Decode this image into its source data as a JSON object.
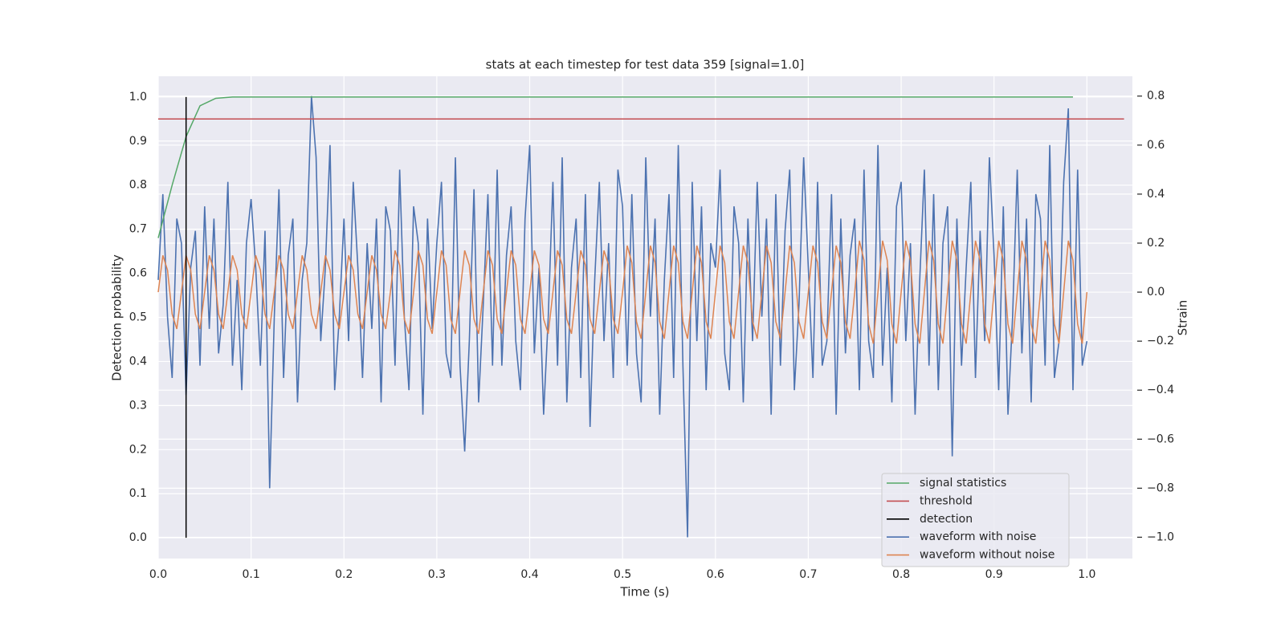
{
  "chart_data": {
    "type": "line",
    "title": "stats at each timestep for test data 359 [signal=1.0]",
    "xlabel": "Time (s)",
    "ylabel": "Detection probability",
    "y2label": "Strain",
    "xlim": [
      0,
      1.049
    ],
    "ylim": [
      -0.047,
      1.047
    ],
    "y2lim": [
      -1.087,
      0.881
    ],
    "xticks": [
      {
        "value": 0,
        "label": "0.0"
      },
      0.1,
      0.2,
      0.3,
      0.4,
      0.5,
      0.6,
      0.7,
      0.8,
      0.9,
      {
        "value": 1,
        "label": "1.0"
      }
    ],
    "yticks": [
      {
        "value": 0,
        "label": "0.0"
      },
      0.1,
      0.2,
      0.3,
      0.4,
      0.5,
      0.6,
      0.7,
      0.8,
      0.9,
      {
        "value": 1,
        "label": "1.0"
      }
    ],
    "y2ticks": [
      {
        "value": -1,
        "label": "−1.0"
      },
      {
        "value": -0.8,
        "label": "−0.8"
      },
      {
        "value": -0.6,
        "label": "−0.6"
      },
      {
        "value": -0.4,
        "label": "−0.4"
      },
      {
        "value": -0.2,
        "label": "−0.2"
      },
      {
        "value": 0,
        "label": "0.0"
      },
      0.2,
      0.4,
      0.6,
      0.8
    ],
    "grid": true,
    "legend": "lower right",
    "x": [
      0,
      0.005,
      0.01,
      0.015,
      0.02,
      0.025,
      0.03,
      0.035,
      0.04,
      0.045,
      0.05,
      0.055,
      0.06,
      0.065,
      0.07,
      0.075,
      0.08,
      0.085,
      0.09,
      0.095,
      0.1,
      0.105,
      0.11,
      0.115,
      0.12,
      0.125,
      0.13,
      0.135,
      0.14,
      0.145,
      0.15,
      0.155,
      0.16,
      0.165,
      0.17,
      0.175,
      0.18,
      0.185,
      0.19,
      0.195,
      0.2,
      0.205,
      0.21,
      0.215,
      0.22,
      0.225,
      0.23,
      0.235,
      0.24,
      0.245,
      0.25,
      0.255,
      0.26,
      0.265,
      0.27,
      0.275,
      0.28,
      0.285,
      0.29,
      0.295,
      0.3,
      0.305,
      0.31,
      0.315,
      0.32,
      0.325,
      0.33,
      0.335,
      0.34,
      0.345,
      0.35,
      0.355,
      0.36,
      0.365,
      0.37,
      0.375,
      0.38,
      0.385,
      0.39,
      0.395,
      0.4,
      0.405,
      0.41,
      0.415,
      0.42,
      0.425,
      0.43,
      0.435,
      0.44,
      0.445,
      0.45,
      0.455,
      0.46,
      0.465,
      0.47,
      0.475,
      0.48,
      0.485,
      0.49,
      0.495,
      0.5,
      0.505,
      0.51,
      0.515,
      0.52,
      0.525,
      0.53,
      0.535,
      0.54,
      0.545,
      0.55,
      0.555,
      0.56,
      0.565,
      0.57,
      0.575,
      0.58,
      0.585,
      0.59,
      0.595,
      0.6,
      0.605,
      0.61,
      0.615,
      0.62,
      0.625,
      0.63,
      0.635,
      0.64,
      0.645,
      0.65,
      0.655,
      0.66,
      0.665,
      0.67,
      0.675,
      0.68,
      0.685,
      0.69,
      0.695,
      0.7,
      0.705,
      0.71,
      0.715,
      0.72,
      0.725,
      0.73,
      0.735,
      0.74,
      0.745,
      0.75,
      0.755,
      0.76,
      0.765,
      0.77,
      0.775,
      0.78,
      0.785,
      0.79,
      0.795,
      0.8,
      0.805,
      0.81,
      0.815,
      0.82,
      0.825,
      0.83,
      0.835,
      0.84,
      0.845,
      0.85,
      0.855,
      0.86,
      0.865,
      0.87,
      0.875,
      0.88,
      0.885,
      0.89,
      0.895,
      0.9,
      0.905,
      0.91,
      0.915,
      0.92,
      0.925,
      0.93,
      0.935,
      0.94,
      0.945,
      0.95,
      0.955,
      0.96,
      0.965,
      0.97,
      0.975,
      0.98,
      0.985,
      0.99,
      0.995,
      1
    ],
    "series": [
      {
        "name": "signal statistics",
        "color": "#55a868",
        "axis": "y",
        "x": [
          0,
          0.015,
          0.03,
          0.045,
          0.062,
          0.08,
          0.985
        ],
        "values": [
          0.68,
          0.8,
          0.91,
          0.98,
          0.997,
          1,
          1
        ]
      },
      {
        "name": "threshold",
        "color": "#c44e52",
        "axis": "y",
        "x": [
          0,
          1.04
        ],
        "values": [
          0.95,
          0.95
        ]
      },
      {
        "name": "detection",
        "color": "#000000",
        "axis": "y",
        "x": [
          0.03,
          0.03
        ],
        "values": [
          0,
          1
        ]
      },
      {
        "name": "waveform with noise",
        "color": "#4c72b0",
        "axis": "y2",
        "values": [
          0.05,
          0.4,
          -0.1,
          -0.35,
          0.3,
          0.2,
          -0.42,
          0.1,
          0.25,
          -0.3,
          0.35,
          -0.15,
          0.3,
          -0.25,
          -0.05,
          0.45,
          -0.3,
          0.05,
          -0.4,
          0.2,
          0.38,
          0.1,
          -0.3,
          0.25,
          -0.8,
          -0.1,
          0.42,
          -0.35,
          0.15,
          0.3,
          -0.45,
          0.05,
          0.2,
          0.8,
          0.55,
          -0.2,
          0.1,
          0.6,
          -0.4,
          -0.1,
          0.3,
          -0.2,
          0.45,
          0.1,
          -0.35,
          0.2,
          -0.15,
          0.3,
          -0.45,
          0.35,
          0.25,
          -0.3,
          0.5,
          -0.1,
          -0.4,
          0.35,
          0.2,
          -0.5,
          0.3,
          -0.15,
          0.2,
          0.45,
          -0.25,
          -0.35,
          0.55,
          -0.3,
          -0.65,
          -0.2,
          0.42,
          -0.45,
          -0.05,
          0.4,
          -0.3,
          0.5,
          -0.3,
          0.15,
          0.35,
          -0.2,
          -0.4,
          0.3,
          0.6,
          -0.25,
          0.1,
          -0.5,
          -0.1,
          0.45,
          -0.3,
          0.55,
          -0.45,
          0.1,
          0.3,
          -0.35,
          0.4,
          -0.55,
          0.05,
          0.45,
          -0.2,
          0.2,
          -0.35,
          0.5,
          0.35,
          -0.3,
          0.4,
          -0.25,
          -0.45,
          0.55,
          -0.1,
          0.3,
          -0.5,
          0.05,
          0.4,
          -0.35,
          0.6,
          -0.3,
          -1.0,
          0.45,
          -0.2,
          0.35,
          -0.4,
          0.2,
          0.1,
          0.5,
          -0.25,
          -0.4,
          0.35,
          0.2,
          -0.45,
          0.3,
          -0.2,
          0.45,
          -0.1,
          0.3,
          -0.5,
          0.4,
          -0.3,
          0.25,
          0.5,
          -0.4,
          -0.05,
          0.55,
          0.1,
          -0.35,
          0.45,
          -0.3,
          -0.2,
          0.4,
          -0.5,
          0.3,
          -0.25,
          0.15,
          0.3,
          -0.4,
          0.5,
          -0.2,
          -0.35,
          0.6,
          -0.3,
          0.1,
          -0.45,
          0.35,
          0.45,
          -0.2,
          0.2,
          -0.5,
          0.05,
          0.5,
          -0.3,
          0.4,
          -0.4,
          0.2,
          0.35,
          -0.67,
          0.3,
          -0.3,
          0.1,
          0.45,
          -0.35,
          0.25,
          -0.2,
          0.55,
          0.15,
          -0.4,
          0.35,
          -0.5,
          -0.1,
          0.5,
          -0.25,
          0.3,
          -0.45,
          0.4,
          0.3,
          -0.3,
          0.6,
          -0.35,
          -0.2,
          0.45,
          0.75,
          -0.4,
          0.5,
          -0.3,
          -0.2
        ]
      },
      {
        "name": "waveform without noise",
        "color": "#dd8452",
        "axis": "y2",
        "values": [
          0,
          0.15,
          0.09,
          -0.09,
          -0.15,
          0,
          0.15,
          0.09,
          -0.09,
          -0.15,
          0,
          0.15,
          0.09,
          -0.09,
          -0.15,
          0,
          0.15,
          0.09,
          -0.09,
          -0.15,
          0,
          0.15,
          0.09,
          -0.09,
          -0.15,
          0,
          0.15,
          0.09,
          -0.09,
          -0.15,
          0,
          0.15,
          0.09,
          -0.09,
          -0.15,
          0,
          0.15,
          0.09,
          -0.09,
          -0.15,
          0,
          0.15,
          0.09,
          -0.09,
          -0.15,
          0,
          0.15,
          0.09,
          -0.09,
          -0.15,
          0,
          0.17,
          0.11,
          -0.11,
          -0.17,
          0,
          0.17,
          0.11,
          -0.11,
          -0.17,
          0,
          0.17,
          0.11,
          -0.11,
          -0.17,
          0,
          0.17,
          0.11,
          -0.11,
          -0.17,
          0,
          0.17,
          0.11,
          -0.11,
          -0.17,
          0,
          0.17,
          0.11,
          -0.11,
          -0.17,
          0,
          0.17,
          0.11,
          -0.11,
          -0.17,
          0,
          0.17,
          0.11,
          -0.11,
          -0.17,
          0,
          0.17,
          0.11,
          -0.11,
          -0.17,
          0,
          0.17,
          0.11,
          -0.11,
          -0.17,
          0,
          0.19,
          0.12,
          -0.12,
          -0.19,
          0,
          0.19,
          0.12,
          -0.12,
          -0.19,
          0,
          0.19,
          0.12,
          -0.12,
          -0.19,
          0,
          0.19,
          0.12,
          -0.12,
          -0.19,
          0,
          0.19,
          0.12,
          -0.12,
          -0.19,
          0,
          0.19,
          0.12,
          -0.12,
          -0.19,
          0,
          0.19,
          0.12,
          -0.12,
          -0.19,
          0,
          0.19,
          0.12,
          -0.12,
          -0.19,
          0,
          0.19,
          0.12,
          -0.12,
          -0.19,
          0,
          0.19,
          0.12,
          -0.12,
          -0.19,
          0,
          0.21,
          0.13,
          -0.13,
          -0.21,
          0,
          0.21,
          0.13,
          -0.13,
          -0.21,
          0,
          0.21,
          0.13,
          -0.13,
          -0.21,
          0,
          0.21,
          0.13,
          -0.13,
          -0.21,
          0,
          0.21,
          0.13,
          -0.13,
          -0.21,
          0,
          0.21,
          0.13,
          -0.13,
          -0.21,
          0,
          0.21,
          0.13,
          -0.13,
          -0.21,
          0,
          0.21,
          0.13,
          -0.13,
          -0.21,
          0,
          0.21,
          0.13,
          -0.13,
          -0.21,
          0,
          0.21,
          0.13,
          -0.13,
          -0.21,
          0
        ]
      }
    ]
  }
}
